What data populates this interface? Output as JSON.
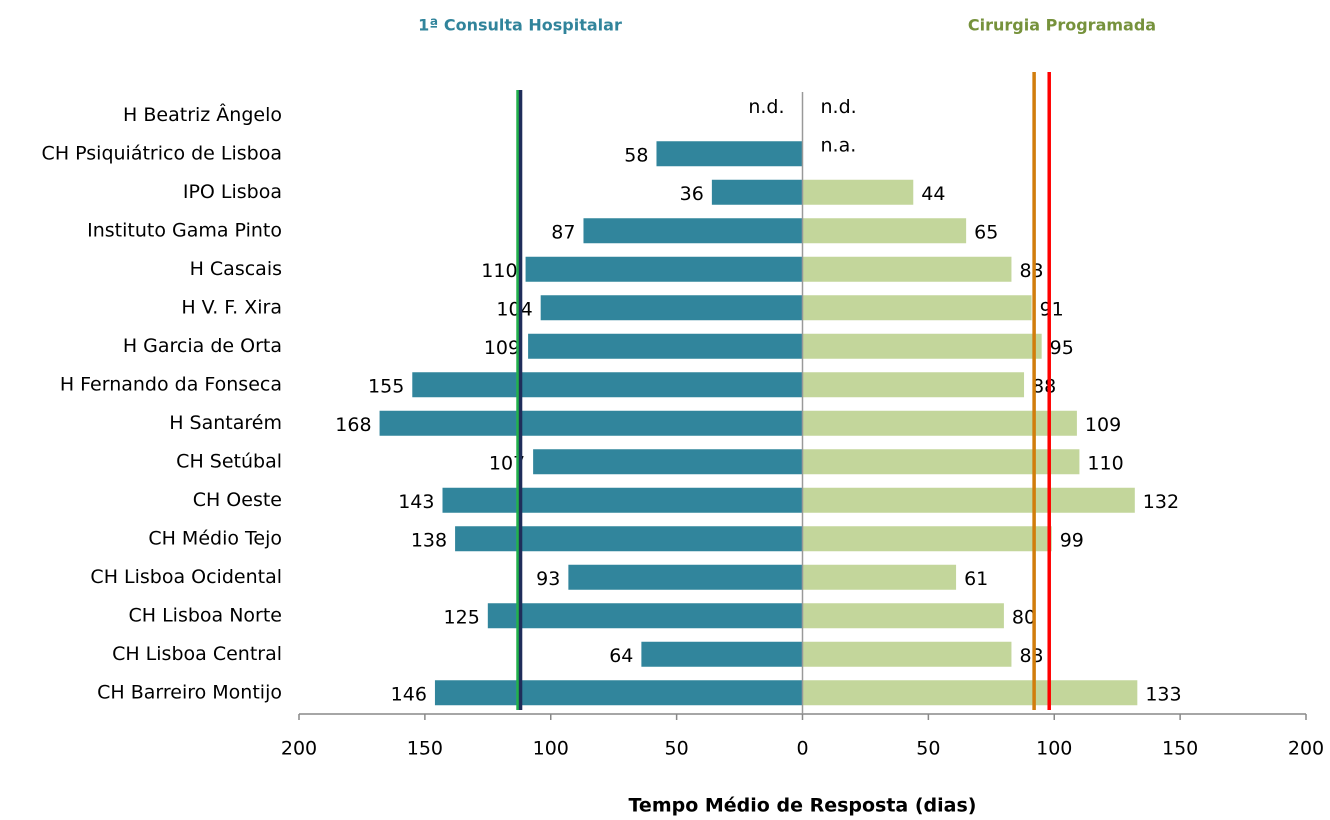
{
  "chart_data": {
    "type": "butterfly-bar",
    "x_label": "Tempo Médio de Resposta (dias)",
    "categories": [
      "H Beatriz Ângelo",
      "CH Psiquiátrico de Lisboa",
      "IPO Lisboa",
      "Instituto Gama Pinto",
      "H Cascais",
      "H V. F. Xira",
      "H Garcia de Orta ",
      "H Fernando da Fonseca",
      "H Santarém",
      "CH Setúbal",
      "CH Oeste",
      "CH Médio Tejo ",
      "CH Lisboa Ocidental",
      "CH Lisboa Norte",
      "CH Lisboa Central",
      "CH Barreiro Montijo"
    ],
    "series": [
      {
        "name": "1ª Consulta Hospitalar",
        "color": "#31859c",
        "title_color": "#31849b",
        "values": [
          null,
          58,
          36,
          87,
          110,
          104,
          109,
          155,
          168,
          107,
          143,
          138,
          93,
          125,
          64,
          146
        ],
        "value_labels": [
          "n.d.",
          null,
          null,
          null,
          null,
          null,
          null,
          null,
          null,
          null,
          null,
          null,
          null,
          null,
          null,
          null
        ],
        "reference_lines": [
          {
            "value": 113,
            "color": "#22b14c"
          },
          {
            "value": 112,
            "color": "#1f2d5a"
          }
        ]
      },
      {
        "name": "Cirurgia Programada",
        "color": "#c3d69b",
        "title_color": "#76923c",
        "values": [
          null,
          null,
          44,
          65,
          83,
          91,
          95,
          88,
          109,
          110,
          132,
          99,
          61,
          80,
          83,
          133
        ],
        "value_labels": [
          "n.d.",
          "n.a.",
          null,
          null,
          null,
          null,
          null,
          null,
          null,
          null,
          null,
          null,
          null,
          null,
          null,
          null
        ],
        "reference_lines": [
          {
            "value": 92,
            "color": "#d17d0c"
          },
          {
            "value": 98,
            "color": "#ff0000"
          }
        ]
      }
    ],
    "xlim": [
      -200,
      200
    ],
    "xticks": [
      {
        "value": -200,
        "label": "200"
      },
      {
        "value": -150,
        "label": "150"
      },
      {
        "value": -100,
        "label": "100"
      },
      {
        "value": -50,
        "label": "50"
      },
      0,
      50,
      100,
      150,
      200
    ]
  }
}
